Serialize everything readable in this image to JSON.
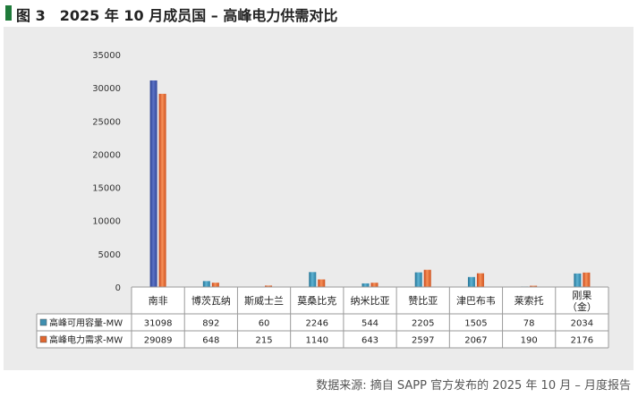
{
  "header": {
    "title": "图 3　2025 年 10 月成员国 – 高峰电力供需对比"
  },
  "footer": {
    "source": "数据来源: 摘自 SAPP 官方发布的 2025 年 10 月 – 月度报告"
  },
  "chart_data": {
    "type": "bar",
    "title": "",
    "xlabel": "",
    "ylabel": "",
    "ylim": [
      0,
      35000
    ],
    "yticks": [
      0,
      5000,
      10000,
      15000,
      20000,
      25000,
      30000,
      35000
    ],
    "categories": [
      "南非",
      "博茨瓦纳",
      "斯威士兰",
      "莫桑比克",
      "纳米比亚",
      "赞比亚",
      "津巴布韦",
      "莱索托",
      "刚果（金）"
    ],
    "series": [
      {
        "name": "高峰可用容量-MW",
        "values": [
          31098,
          892,
          60,
          2246,
          544,
          2205,
          1505,
          78,
          2034
        ]
      },
      {
        "name": "高峰电力需求-MW",
        "values": [
          29089,
          648,
          215,
          1140,
          643,
          2597,
          2067,
          190,
          2176
        ]
      }
    ],
    "series_colors": [
      "#3f8fb0",
      "#e0662f"
    ],
    "legend": "bottom-table",
    "grid": false
  }
}
